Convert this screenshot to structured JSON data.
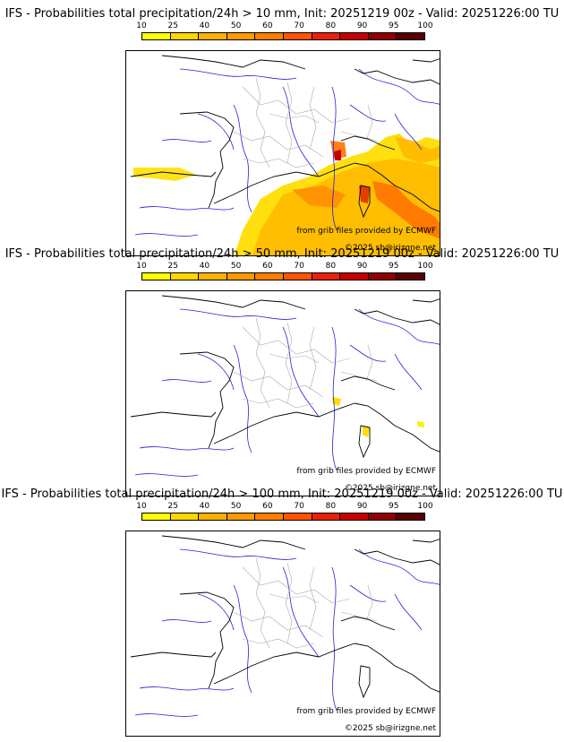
{
  "colors": {
    "scale": [
      "#ffff00",
      "#ffd700",
      "#ffb000",
      "#ff9a00",
      "#ff7f00",
      "#ff5500",
      "#e8200a",
      "#c80000",
      "#900000",
      "#5a0000"
    ],
    "river": "#2323d6",
    "border": "#aaaaaa",
    "coast": "#000000"
  },
  "colorbar": {
    "ticks": [
      "10",
      "25",
      "40",
      "50",
      "60",
      "70",
      "80",
      "90",
      "95",
      "100"
    ]
  },
  "credits": {
    "source": "from grib files provided by ECMWF",
    "copyright": "©2025 sb@irizgne.net"
  },
  "panels": [
    {
      "title": "IFS - Probabilities total precipitation/24h > 10 mm, Init: 20251219 00z - Valid: 20251226:00 TU",
      "threshold": "10 mm"
    },
    {
      "title": "IFS - Probabilities total precipitation/24h > 50 mm, Init: 20251219 00z - Valid: 20251226:00 TU",
      "threshold": "50 mm"
    },
    {
      "title": "IFS - Probabilities total precipitation/24h > 100 mm, Init: 20251219 00z - Valid: 20251226:00 TU",
      "threshold": "100 mm"
    }
  ]
}
